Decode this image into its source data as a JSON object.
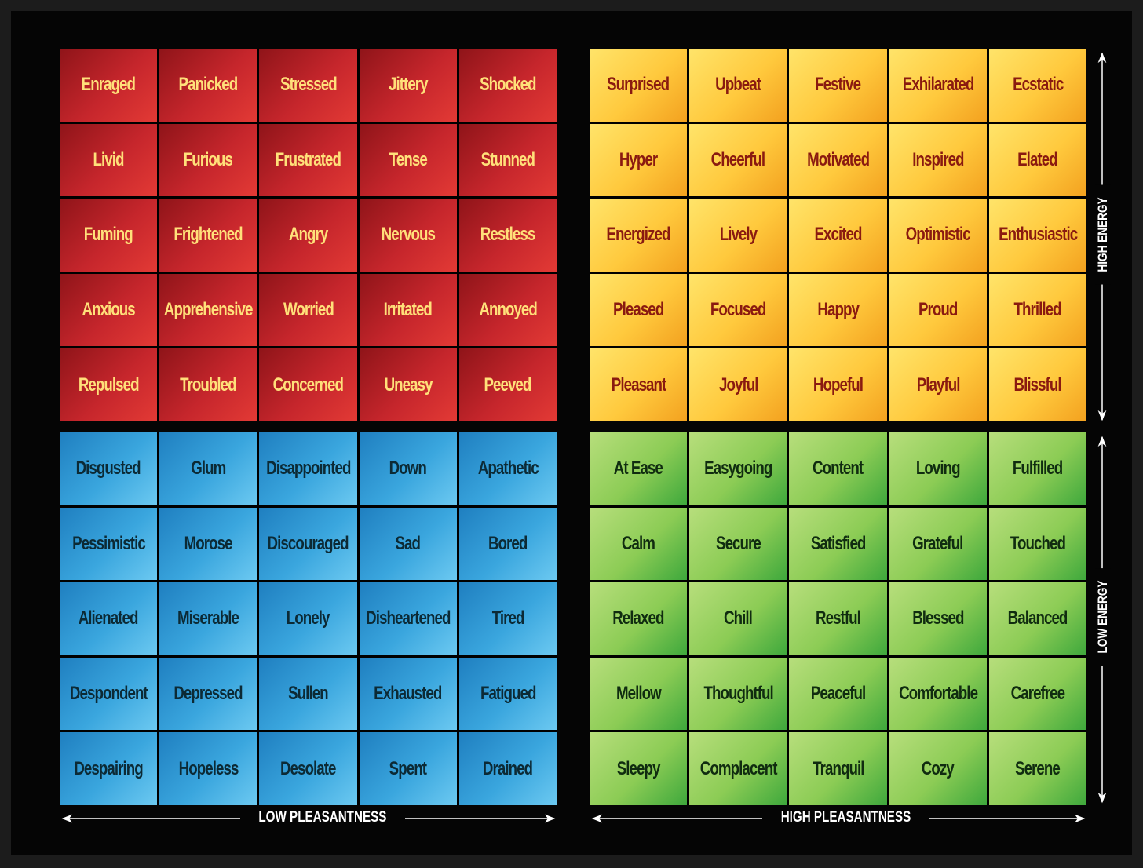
{
  "quadrants": {
    "red": [
      [
        "Enraged",
        "Panicked",
        "Stressed",
        "Jittery",
        "Shocked"
      ],
      [
        "Livid",
        "Furious",
        "Frustrated",
        "Tense",
        "Stunned"
      ],
      [
        "Fuming",
        "Frightened",
        "Angry",
        "Nervous",
        "Restless"
      ],
      [
        "Anxious",
        "Apprehensive",
        "Worried",
        "Irritated",
        "Annoyed"
      ],
      [
        "Repulsed",
        "Troubled",
        "Concerned",
        "Uneasy",
        "Peeved"
      ]
    ],
    "yellow": [
      [
        "Surprised",
        "Upbeat",
        "Festive",
        "Exhilarated",
        "Ecstatic"
      ],
      [
        "Hyper",
        "Cheerful",
        "Motivated",
        "Inspired",
        "Elated"
      ],
      [
        "Energized",
        "Lively",
        "Excited",
        "Optimistic",
        "Enthusiastic"
      ],
      [
        "Pleased",
        "Focused",
        "Happy",
        "Proud",
        "Thrilled"
      ],
      [
        "Pleasant",
        "Joyful",
        "Hopeful",
        "Playful",
        "Blissful"
      ]
    ],
    "blue": [
      [
        "Disgusted",
        "Glum",
        "Disappointed",
        "Down",
        "Apathetic"
      ],
      [
        "Pessimistic",
        "Morose",
        "Discouraged",
        "Sad",
        "Bored"
      ],
      [
        "Alienated",
        "Miserable",
        "Lonely",
        "Disheartened",
        "Tired"
      ],
      [
        "Despondent",
        "Depressed",
        "Sullen",
        "Exhausted",
        "Fatigued"
      ],
      [
        "Despairing",
        "Hopeless",
        "Desolate",
        "Spent",
        "Drained"
      ]
    ],
    "green": [
      [
        "At Ease",
        "Easygoing",
        "Content",
        "Loving",
        "Fulfilled"
      ],
      [
        "Calm",
        "Secure",
        "Satisfied",
        "Grateful",
        "Touched"
      ],
      [
        "Relaxed",
        "Chill",
        "Restful",
        "Blessed",
        "Balanced"
      ],
      [
        "Mellow",
        "Thoughtful",
        "Peaceful",
        "Comfortable",
        "Carefree"
      ],
      [
        "Sleepy",
        "Complacent",
        "Tranquil",
        "Cozy",
        "Serene"
      ]
    ]
  },
  "axes": {
    "low_pleasantness": "LOW PLEASANTNESS",
    "high_pleasantness": "HIGH PLEASANTNESS",
    "high_energy": "HIGH ENERGY",
    "low_energy": "LOW ENERGY"
  },
  "colors": {
    "red": "#c6262c",
    "yellow": "#ffc93d",
    "blue": "#3aa6de",
    "green": "#8ccc55",
    "background": "#050505"
  }
}
